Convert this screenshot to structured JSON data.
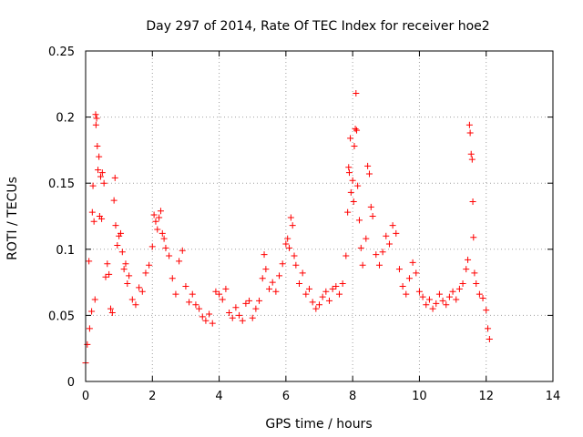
{
  "chart_data": {
    "type": "scatter",
    "title": "Day 297 of 2014, Rate Of TEC Index for receiver hoe2",
    "xlabel": "GPS time / hours",
    "ylabel": "ROTI / TECUs",
    "xlim": [
      0,
      14
    ],
    "ylim": [
      0,
      0.25
    ],
    "x_ticks": [
      0,
      2,
      4,
      6,
      8,
      10,
      12,
      14
    ],
    "y_ticks": [
      0,
      0.05,
      0.1,
      0.15,
      0.2,
      0.25
    ],
    "x_tick_labels": [
      "0",
      "2",
      "4",
      "6",
      "8",
      "10",
      "12",
      "14"
    ],
    "y_tick_labels": [
      "0",
      "0.05",
      "0.1",
      "0.15",
      "0.2",
      "0.25"
    ],
    "grid": true,
    "marker": "+",
    "color": "#ff0000",
    "series": [
      {
        "name": "hoe2",
        "points": [
          [
            0.0,
            0.014
          ],
          [
            0.05,
            0.028
          ],
          [
            0.1,
            0.091
          ],
          [
            0.12,
            0.04
          ],
          [
            0.18,
            0.053
          ],
          [
            0.2,
            0.128
          ],
          [
            0.22,
            0.148
          ],
          [
            0.25,
            0.121
          ],
          [
            0.28,
            0.062
          ],
          [
            0.3,
            0.202
          ],
          [
            0.31,
            0.194
          ],
          [
            0.33,
            0.199
          ],
          [
            0.35,
            0.178
          ],
          [
            0.37,
            0.16
          ],
          [
            0.4,
            0.17
          ],
          [
            0.42,
            0.125
          ],
          [
            0.45,
            0.155
          ],
          [
            0.48,
            0.123
          ],
          [
            0.5,
            0.158
          ],
          [
            0.55,
            0.15
          ],
          [
            0.6,
            0.079
          ],
          [
            0.65,
            0.089
          ],
          [
            0.7,
            0.081
          ],
          [
            0.75,
            0.055
          ],
          [
            0.8,
            0.052
          ],
          [
            0.85,
            0.137
          ],
          [
            0.88,
            0.154
          ],
          [
            0.9,
            0.118
          ],
          [
            0.95,
            0.103
          ],
          [
            1.0,
            0.11
          ],
          [
            1.05,
            0.112
          ],
          [
            1.1,
            0.098
          ],
          [
            1.15,
            0.085
          ],
          [
            1.2,
            0.089
          ],
          [
            1.25,
            0.074
          ],
          [
            1.3,
            0.08
          ],
          [
            1.4,
            0.062
          ],
          [
            1.5,
            0.058
          ],
          [
            1.6,
            0.071
          ],
          [
            1.7,
            0.068
          ],
          [
            1.8,
            0.082
          ],
          [
            1.9,
            0.088
          ],
          [
            2.0,
            0.102
          ],
          [
            2.05,
            0.126
          ],
          [
            2.1,
            0.121
          ],
          [
            2.15,
            0.115
          ],
          [
            2.2,
            0.124
          ],
          [
            2.25,
            0.129
          ],
          [
            2.3,
            0.112
          ],
          [
            2.35,
            0.108
          ],
          [
            2.4,
            0.101
          ],
          [
            2.5,
            0.095
          ],
          [
            2.6,
            0.078
          ],
          [
            2.7,
            0.066
          ],
          [
            2.8,
            0.091
          ],
          [
            2.9,
            0.099
          ],
          [
            3.0,
            0.072
          ],
          [
            3.1,
            0.06
          ],
          [
            3.2,
            0.066
          ],
          [
            3.3,
            0.058
          ],
          [
            3.4,
            0.055
          ],
          [
            3.5,
            0.049
          ],
          [
            3.6,
            0.046
          ],
          [
            3.7,
            0.051
          ],
          [
            3.8,
            0.044
          ],
          [
            3.9,
            0.068
          ],
          [
            4.0,
            0.066
          ],
          [
            4.1,
            0.062
          ],
          [
            4.2,
            0.07
          ],
          [
            4.3,
            0.052
          ],
          [
            4.4,
            0.048
          ],
          [
            4.5,
            0.056
          ],
          [
            4.6,
            0.05
          ],
          [
            4.7,
            0.046
          ],
          [
            4.8,
            0.059
          ],
          [
            4.9,
            0.061
          ],
          [
            5.0,
            0.048
          ],
          [
            5.1,
            0.055
          ],
          [
            5.2,
            0.061
          ],
          [
            5.3,
            0.078
          ],
          [
            5.35,
            0.096
          ],
          [
            5.4,
            0.085
          ],
          [
            5.5,
            0.07
          ],
          [
            5.6,
            0.075
          ],
          [
            5.7,
            0.068
          ],
          [
            5.8,
            0.08
          ],
          [
            5.9,
            0.089
          ],
          [
            6.0,
            0.104
          ],
          [
            6.05,
            0.108
          ],
          [
            6.1,
            0.101
          ],
          [
            6.15,
            0.124
          ],
          [
            6.2,
            0.118
          ],
          [
            6.25,
            0.095
          ],
          [
            6.3,
            0.088
          ],
          [
            6.4,
            0.074
          ],
          [
            6.5,
            0.082
          ],
          [
            6.6,
            0.066
          ],
          [
            6.7,
            0.07
          ],
          [
            6.8,
            0.06
          ],
          [
            6.9,
            0.055
          ],
          [
            7.0,
            0.058
          ],
          [
            7.1,
            0.064
          ],
          [
            7.2,
            0.068
          ],
          [
            7.3,
            0.061
          ],
          [
            7.4,
            0.07
          ],
          [
            7.5,
            0.072
          ],
          [
            7.6,
            0.066
          ],
          [
            7.7,
            0.074
          ],
          [
            7.8,
            0.095
          ],
          [
            7.85,
            0.128
          ],
          [
            7.88,
            0.162
          ],
          [
            7.9,
            0.158
          ],
          [
            7.93,
            0.184
          ],
          [
            7.95,
            0.143
          ],
          [
            8.0,
            0.152
          ],
          [
            8.03,
            0.136
          ],
          [
            8.05,
            0.178
          ],
          [
            8.08,
            0.191
          ],
          [
            8.1,
            0.218
          ],
          [
            8.12,
            0.19
          ],
          [
            8.15,
            0.148
          ],
          [
            8.2,
            0.122
          ],
          [
            8.25,
            0.101
          ],
          [
            8.3,
            0.088
          ],
          [
            8.4,
            0.108
          ],
          [
            8.45,
            0.163
          ],
          [
            8.5,
            0.157
          ],
          [
            8.55,
            0.132
          ],
          [
            8.6,
            0.125
          ],
          [
            8.7,
            0.096
          ],
          [
            8.8,
            0.088
          ],
          [
            8.9,
            0.098
          ],
          [
            9.0,
            0.11
          ],
          [
            9.1,
            0.104
          ],
          [
            9.2,
            0.118
          ],
          [
            9.3,
            0.112
          ],
          [
            9.4,
            0.085
          ],
          [
            9.5,
            0.072
          ],
          [
            9.6,
            0.066
          ],
          [
            9.7,
            0.078
          ],
          [
            9.8,
            0.09
          ],
          [
            9.9,
            0.082
          ],
          [
            10.0,
            0.068
          ],
          [
            10.1,
            0.064
          ],
          [
            10.2,
            0.058
          ],
          [
            10.3,
            0.062
          ],
          [
            10.4,
            0.055
          ],
          [
            10.5,
            0.059
          ],
          [
            10.6,
            0.066
          ],
          [
            10.7,
            0.061
          ],
          [
            10.8,
            0.058
          ],
          [
            10.9,
            0.064
          ],
          [
            11.0,
            0.068
          ],
          [
            11.1,
            0.062
          ],
          [
            11.2,
            0.07
          ],
          [
            11.3,
            0.074
          ],
          [
            11.4,
            0.085
          ],
          [
            11.45,
            0.092
          ],
          [
            11.5,
            0.194
          ],
          [
            11.52,
            0.188
          ],
          [
            11.55,
            0.172
          ],
          [
            11.58,
            0.168
          ],
          [
            11.6,
            0.136
          ],
          [
            11.62,
            0.109
          ],
          [
            11.65,
            0.082
          ],
          [
            11.7,
            0.074
          ],
          [
            11.8,
            0.066
          ],
          [
            11.9,
            0.063
          ],
          [
            12.0,
            0.054
          ],
          [
            12.05,
            0.04
          ],
          [
            12.1,
            0.032
          ]
        ]
      }
    ]
  },
  "colors": {
    "marker": "#ff0000",
    "grid": "#a0a0a0",
    "axis": "#000000"
  }
}
